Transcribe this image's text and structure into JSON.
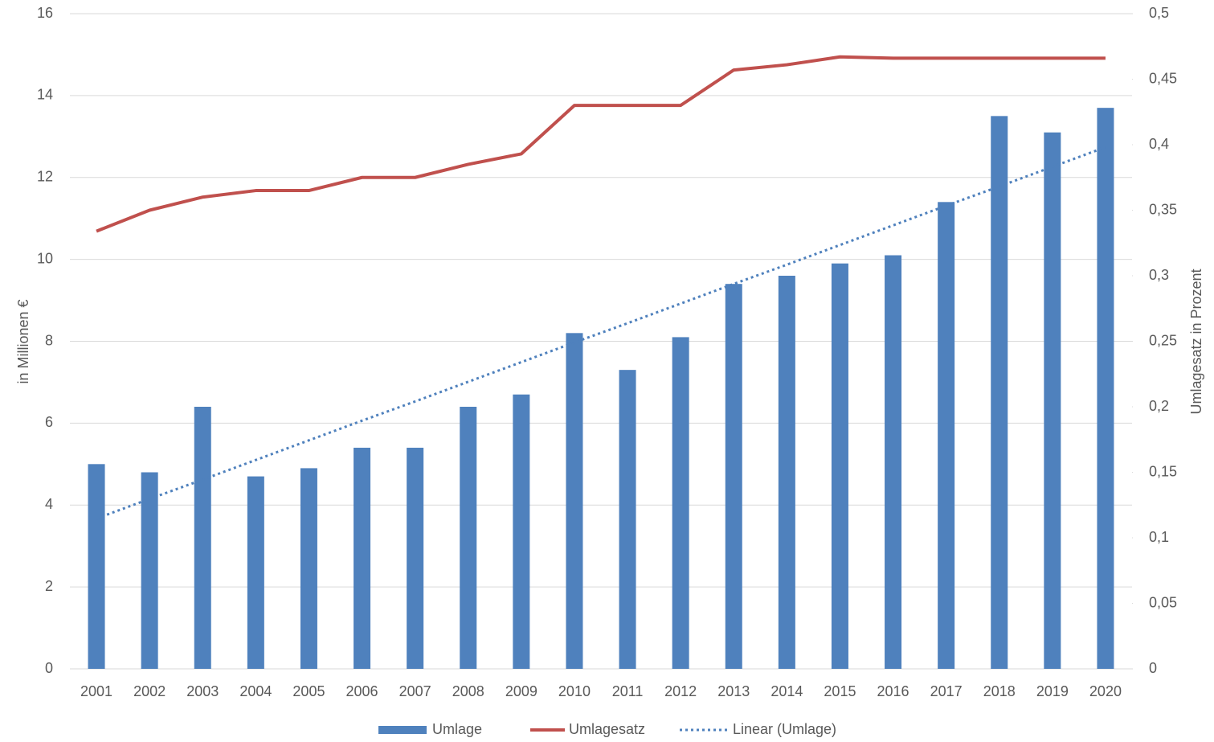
{
  "chart_data": {
    "type": "bar",
    "categories": [
      "2001",
      "2002",
      "2003",
      "2004",
      "2005",
      "2006",
      "2007",
      "2008",
      "2009",
      "2010",
      "2011",
      "2012",
      "2013",
      "2014",
      "2015",
      "2016",
      "2017",
      "2018",
      "2019",
      "2020"
    ],
    "series": [
      {
        "name": "Umlage",
        "type": "bar",
        "color": "#4f81bd",
        "values": [
          5.0,
          4.8,
          6.4,
          4.7,
          4.9,
          5.4,
          5.4,
          6.4,
          6.7,
          8.2,
          7.3,
          8.1,
          9.4,
          9.6,
          9.9,
          10.1,
          11.4,
          13.5,
          13.1,
          13.7
        ]
      },
      {
        "name": "Umlagesatz",
        "type": "line",
        "axis": "y2",
        "color": "#c0504d",
        "values": [
          0.334,
          0.35,
          0.36,
          0.365,
          0.365,
          0.375,
          0.375,
          0.385,
          0.393,
          0.43,
          0.43,
          0.43,
          0.457,
          0.461,
          0.467,
          0.466,
          0.466,
          0.466,
          0.466,
          0.466
        ]
      },
      {
        "name": "Linear (Umlage)",
        "type": "line",
        "dash": "dotted",
        "color": "#4f81bd",
        "values": [
          3.67,
          4.15,
          4.62,
          5.1,
          5.58,
          6.06,
          6.53,
          7.01,
          7.49,
          7.97,
          8.44,
          8.92,
          9.4,
          9.87,
          10.35,
          10.83,
          11.31,
          11.78,
          12.26,
          12.74
        ]
      }
    ],
    "ylabel": "in Millionen €",
    "y2label": "Umlagesatz in Prozent",
    "ylim": [
      0,
      16
    ],
    "yticks": [
      0,
      2,
      4,
      6,
      8,
      10,
      12,
      14,
      16
    ],
    "y2lim": [
      0,
      0.5
    ],
    "y2ticks": [
      0,
      {
        "value": 0.05,
        "label": "0,05"
      },
      {
        "value": 0.1,
        "label": "0,1"
      },
      {
        "value": 0.15,
        "label": "0,15"
      },
      {
        "value": 0.2,
        "label": "0,2"
      },
      {
        "value": 0.25,
        "label": "0,25"
      },
      {
        "value": 0.3,
        "label": "0,3"
      },
      {
        "value": 0.35,
        "label": "0,35"
      },
      {
        "value": 0.4,
        "label": "0,4"
      },
      {
        "value": 0.45,
        "label": "0,45"
      },
      {
        "value": 0.5,
        "label": "0,5"
      }
    ],
    "grid": true,
    "legend": "bottom"
  }
}
